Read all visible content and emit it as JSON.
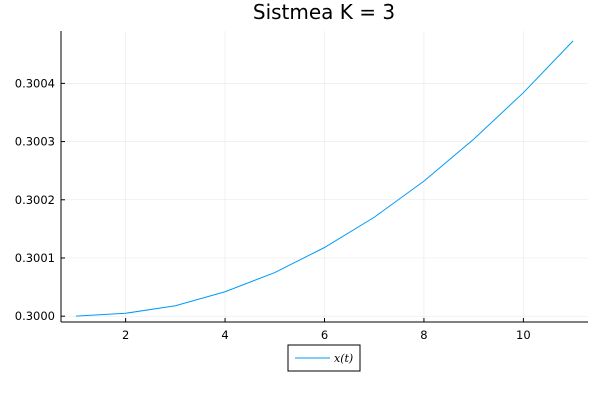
{
  "chart_data": {
    "type": "line",
    "title": "Sistmea K = 3",
    "xlabel": "",
    "ylabel": "",
    "xlim": [
      0.7,
      11.3
    ],
    "ylim": [
      0.29999,
      0.30049
    ],
    "xticks": [
      2,
      4,
      6,
      8,
      10
    ],
    "xtick_labels": [
      "2",
      "4",
      "6",
      "8",
      "10"
    ],
    "yticks": [
      0.3,
      0.3001,
      0.3002,
      0.3003,
      0.3004
    ],
    "ytick_labels": [
      "0.3000",
      "0.3001",
      "0.3002",
      "0.3003",
      "0.3004"
    ],
    "grid": true,
    "legend_position": "bottom-center",
    "series": [
      {
        "name": "x(t)",
        "color": "#009af9",
        "x": [
          1,
          2,
          3,
          4,
          5,
          6,
          7,
          8,
          9,
          10,
          11
        ],
        "y": [
          0.3,
          0.300005,
          0.300018,
          0.300042,
          0.300075,
          0.300118,
          0.30017,
          0.300232,
          0.300304,
          0.300384,
          0.300473
        ]
      }
    ]
  }
}
